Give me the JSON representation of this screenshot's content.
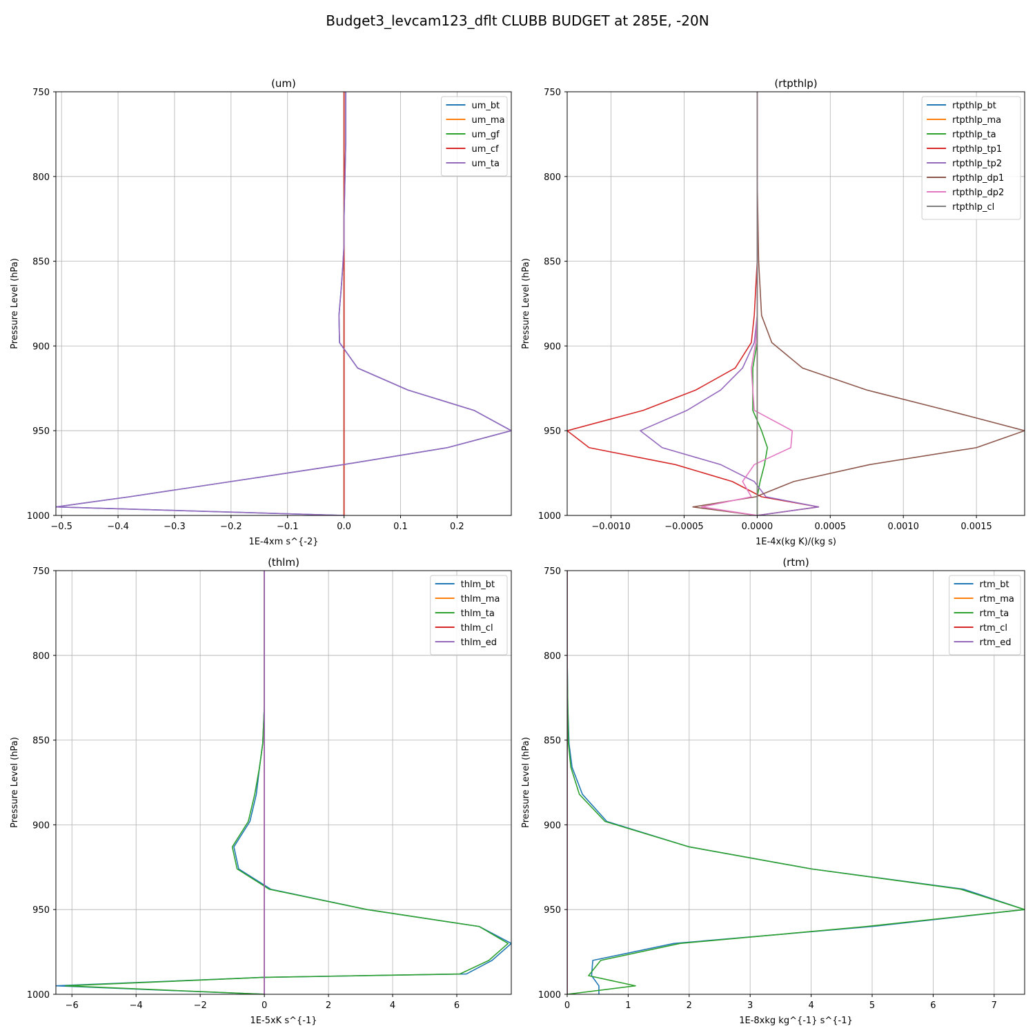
{
  "figure": {
    "title": "Budget3_levcam123_dflt CLUBB BUDGET at 285E, -20N"
  },
  "chart_data": [
    {
      "type": "line",
      "title": "(um)",
      "xlabel": "1E-4xm s^{-2}",
      "ylabel": "Pressure Level (hPa)",
      "xlim": [
        -0.51,
        0.296
      ],
      "ylim": [
        1000,
        750
      ],
      "y_inverted": true,
      "grid": true,
      "legend": "top-right",
      "xticks": [
        -0.5,
        -0.4,
        -0.3,
        -0.2,
        -0.1,
        0.0,
        0.1,
        0.2
      ],
      "xtick_labels": [
        "−0.5",
        "−0.4",
        "−0.3",
        "−0.2",
        "−0.1",
        "0.0",
        "0.1",
        "0.2"
      ],
      "yticks": [
        750,
        800,
        850,
        900,
        950,
        1000
      ],
      "ytick_labels": [
        "750",
        "800",
        "850",
        "900",
        "950",
        "1000"
      ],
      "levels": [
        750,
        765,
        780,
        795,
        810,
        825,
        840,
        852,
        866,
        882,
        898,
        913,
        926,
        938,
        950,
        960,
        970,
        980,
        989,
        995,
        1000
      ],
      "series": [
        {
          "name": "um_bt",
          "color": "#1f77b4",
          "values": [
            0.003,
            0.003,
            0.003,
            0.002,
            0.001,
            0.0,
            0.0,
            -0.002,
            -0.005,
            -0.009,
            -0.008,
            0.024,
            0.113,
            0.23,
            0.296,
            0.183,
            -0.001,
            -0.2,
            -0.38,
            -0.51,
            0.0
          ]
        },
        {
          "name": "um_ma",
          "color": "#ff7f0e",
          "values": [
            0,
            0,
            0,
            0,
            0,
            0,
            0,
            0,
            0,
            0,
            0,
            0,
            0,
            0,
            0,
            0,
            0,
            0,
            0,
            0,
            0
          ]
        },
        {
          "name": "um_gf",
          "color": "#2ca02c",
          "values": [
            0,
            0,
            0,
            0,
            0,
            0,
            0,
            0,
            0,
            0,
            0,
            0,
            0,
            0,
            0,
            0,
            0,
            0,
            0,
            0,
            0
          ]
        },
        {
          "name": "um_cf",
          "color": "#d62728",
          "values": [
            0,
            0,
            0,
            0,
            0,
            0,
            0,
            0,
            0,
            0,
            0,
            0,
            0,
            0,
            0,
            0,
            0,
            0,
            0,
            0,
            0
          ]
        },
        {
          "name": "um_ta",
          "color": "#9467bd",
          "values": [
            0.003,
            0.003,
            0.003,
            0.002,
            0.001,
            0.0,
            0.0,
            -0.002,
            -0.005,
            -0.009,
            -0.008,
            0.024,
            0.113,
            0.23,
            0.296,
            0.183,
            -0.001,
            -0.2,
            -0.38,
            -0.51,
            0.0
          ]
        }
      ]
    },
    {
      "type": "line",
      "title": "(rtpthlp)",
      "xlabel": "1E-4x(kg K)/(kg s)",
      "ylabel": "Pressure Level (hPa)",
      "xlim": [
        -0.0013,
        0.00183
      ],
      "ylim": [
        1000,
        750
      ],
      "y_inverted": true,
      "grid": true,
      "legend": "top-right",
      "xticks": [
        -0.001,
        -0.0005,
        0.0,
        0.0005,
        0.001,
        0.0015
      ],
      "xtick_labels": [
        "−0.0010",
        "−0.0005",
        "0.0000",
        "0.0005",
        "0.0010",
        "0.0015"
      ],
      "yticks": [
        750,
        800,
        850,
        900,
        950,
        1000
      ],
      "ytick_labels": [
        "750",
        "800",
        "850",
        "900",
        "950",
        "1000"
      ],
      "levels": [
        750,
        800,
        850,
        866,
        882,
        898,
        913,
        926,
        938,
        950,
        960,
        970,
        980,
        989,
        995,
        1000
      ],
      "series": [
        {
          "name": "rtpthlp_bt",
          "color": "#1f77b4",
          "values": [
            0,
            0,
            0,
            0,
            0,
            0,
            0,
            0,
            0,
            0,
            0,
            0,
            0,
            0,
            0,
            0
          ]
        },
        {
          "name": "rtpthlp_ma",
          "color": "#ff7f0e",
          "values": [
            0,
            0,
            0,
            0,
            0,
            0,
            0,
            0,
            0,
            0,
            0,
            0,
            0,
            0,
            0,
            0
          ]
        },
        {
          "name": "rtpthlp_ta",
          "color": "#2ca02c",
          "values": [
            0,
            0,
            0,
            0,
            0.0,
            0.0,
            -3e-05,
            -3e-05,
            -3e-05,
            3e-05,
            7e-05,
            5e-05,
            2e-05,
            0.0,
            0.0,
            0.0
          ]
        },
        {
          "name": "rtpthlp_tp1",
          "color": "#d62728",
          "values": [
            0,
            0,
            0,
            -1e-05,
            -2e-05,
            -4e-05,
            -0.00015,
            -0.00042,
            -0.00078,
            -0.0013,
            -0.00115,
            -0.00056,
            -0.00017,
            3e-05,
            0.00042,
            0.0
          ]
        },
        {
          "name": "rtpthlp_tp2",
          "color": "#9467bd",
          "values": [
            0,
            0,
            0,
            0,
            0,
            -2e-05,
            -0.0001,
            -0.00025,
            -0.00048,
            -0.0008,
            -0.00065,
            -0.00025,
            -2e-05,
            6e-05,
            0.00042,
            0.0
          ]
        },
        {
          "name": "rtpthlp_dp1",
          "color": "#8c564b",
          "values": [
            0,
            0,
            1e-05,
            2e-05,
            3e-05,
            0.0001,
            0.00031,
            0.00075,
            0.0013,
            0.00183,
            0.0015,
            0.00077,
            0.00025,
            -1e-05,
            -0.00044,
            0.0
          ]
        },
        {
          "name": "rtpthlp_dp2",
          "color": "#e377c2",
          "values": [
            0,
            0,
            0,
            0,
            0,
            -1e-05,
            -4e-05,
            -3e-05,
            -2e-05,
            0.00024,
            0.00023,
            -2e-05,
            -0.0001,
            -4e-05,
            -0.00038,
            0.0
          ]
        },
        {
          "name": "rtpthlp_cl",
          "color": "#7f7f7f",
          "values": [
            0,
            0,
            0,
            0,
            0,
            0,
            0,
            0,
            0,
            0,
            0,
            0,
            0,
            0,
            0,
            0
          ]
        }
      ]
    },
    {
      "type": "line",
      "title": "(thlm)",
      "xlabel": "1E-5xK s^{-1}",
      "ylabel": "Pressure Level (hPa)",
      "xlim": [
        -6.5,
        7.7
      ],
      "ylim": [
        1000,
        750
      ],
      "y_inverted": true,
      "grid": true,
      "legend": "top-right",
      "xticks": [
        -6,
        -4,
        -2,
        0,
        2,
        4,
        6
      ],
      "xtick_labels": [
        "−6",
        "−4",
        "−2",
        "0",
        "2",
        "4",
        "6"
      ],
      "yticks": [
        750,
        800,
        850,
        900,
        950,
        1000
      ],
      "ytick_labels": [
        "750",
        "800",
        "850",
        "900",
        "950",
        "1000"
      ],
      "levels": [
        750,
        800,
        830,
        852,
        866,
        882,
        898,
        913,
        926,
        938,
        950,
        960,
        970,
        980,
        988,
        990,
        995,
        1000
      ],
      "series": [
        {
          "name": "thlm_bt",
          "color": "#1f77b4",
          "values": [
            0,
            0,
            0,
            -0.05,
            -0.15,
            -0.25,
            -0.45,
            -0.95,
            -0.8,
            0.2,
            3.2,
            6.7,
            7.7,
            7.1,
            6.3,
            0.0,
            -6.5,
            0.0
          ]
        },
        {
          "name": "thlm_ma",
          "color": "#ff7f0e",
          "values": [
            0,
            0,
            0,
            0,
            0,
            0,
            0,
            0,
            0,
            0,
            0,
            0,
            0,
            0,
            0,
            0,
            0,
            0
          ]
        },
        {
          "name": "thlm_ta",
          "color": "#2ca02c",
          "values": [
            0,
            0,
            0,
            -0.05,
            -0.15,
            -0.3,
            -0.5,
            -1.0,
            -0.85,
            0.15,
            3.2,
            6.7,
            7.6,
            7.0,
            6.1,
            0.0,
            -6.2,
            0.0
          ]
        },
        {
          "name": "thlm_cl",
          "color": "#d62728",
          "values": [
            0,
            0,
            0,
            0,
            0,
            0,
            0,
            0,
            0,
            0,
            0,
            0,
            0,
            0,
            0,
            0,
            0,
            0
          ]
        },
        {
          "name": "thlm_ed",
          "color": "#9467bd",
          "values": [
            0,
            0,
            0,
            0,
            0,
            0,
            0,
            0,
            0,
            0,
            0,
            0,
            0,
            0,
            0,
            0,
            0,
            0
          ]
        }
      ]
    },
    {
      "type": "line",
      "title": "(rtm)",
      "xlabel": "1E-8xkg kg^{-1} s^{-1}",
      "ylabel": "Pressure Level (hPa)",
      "xlim": [
        0,
        7.5
      ],
      "ylim": [
        1000,
        750
      ],
      "y_inverted": true,
      "grid": true,
      "legend": "top-right",
      "xticks": [
        0,
        1,
        2,
        3,
        4,
        5,
        6,
        7
      ],
      "xtick_labels": [
        "0",
        "1",
        "2",
        "3",
        "4",
        "5",
        "6",
        "7"
      ],
      "yticks": [
        750,
        800,
        850,
        900,
        950,
        1000
      ],
      "ytick_labels": [
        "750",
        "800",
        "850",
        "900",
        "950",
        "1000"
      ],
      "levels": [
        750,
        800,
        830,
        852,
        866,
        882,
        898,
        913,
        926,
        938,
        950,
        960,
        970,
        980,
        989,
        995,
        1000
      ],
      "series": [
        {
          "name": "rtm_bt",
          "color": "#1f77b4",
          "values": [
            0,
            0,
            0.01,
            0.03,
            0.08,
            0.25,
            0.65,
            2.0,
            4.0,
            6.5,
            7.5,
            5.0,
            1.75,
            0.42,
            0.4,
            0.52,
            0.52
          ]
        },
        {
          "name": "rtm_ma",
          "color": "#ff7f0e",
          "values": [
            0,
            0,
            0,
            0,
            0,
            0,
            0,
            0,
            0,
            0,
            0,
            0,
            0,
            0,
            0,
            0,
            0
          ]
        },
        {
          "name": "rtm_ta",
          "color": "#2ca02c",
          "values": [
            0,
            0,
            0.01,
            0.02,
            0.06,
            0.2,
            0.62,
            2.0,
            4.0,
            6.45,
            7.5,
            4.9,
            1.85,
            0.55,
            0.35,
            1.12,
            0.0
          ]
        },
        {
          "name": "rtm_cl",
          "color": "#d62728",
          "values": [
            0,
            0,
            0,
            0,
            0,
            0,
            0,
            0,
            0,
            0,
            0,
            0,
            0,
            0,
            0,
            0,
            0
          ]
        },
        {
          "name": "rtm_ed",
          "color": "#9467bd",
          "values": [
            0,
            0,
            0,
            0,
            0,
            0,
            0,
            0,
            0,
            0,
            0,
            0,
            0,
            0,
            0,
            0,
            0
          ]
        }
      ]
    }
  ]
}
